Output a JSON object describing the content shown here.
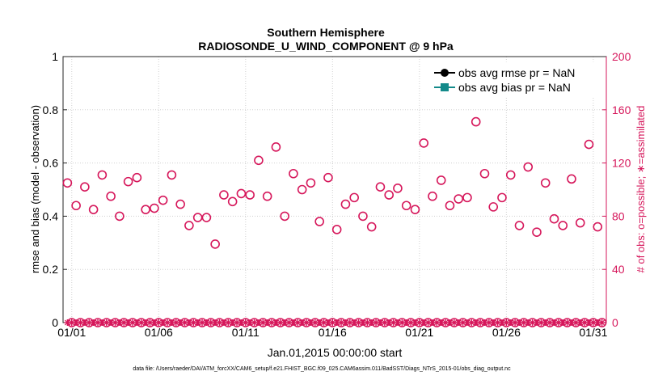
{
  "chart_data": {
    "type": "scatter",
    "title": "Southern Hemisphere",
    "subtitle": "RADIOSONDE_U_WIND_COMPONENT @ 9 hPa",
    "xlabel": "Jan.01,2015 00:00:00 start",
    "ylabel": "rmse and bias (model - observation)",
    "y2label": "# of obs: o=possible; ∗=assimilated",
    "footer": "data file: /Users/raeder/DAI/ATM_forcXX/CAM6_setup/f.e21.FHIST_BGC.f09_025.CAM6assim.011/BadSST/Diags_NTrS_2015-01/obs_diag_output.nc",
    "xlim": [
      0.5,
      31.75
    ],
    "ylim": [
      0,
      1
    ],
    "y2lim": [
      0,
      200
    ],
    "x_ticks": [
      1,
      6,
      11,
      16,
      21,
      26,
      31
    ],
    "x_tick_labels": [
      "01/01",
      "01/06",
      "01/11",
      "01/16",
      "01/21",
      "01/26",
      "01/31"
    ],
    "y_ticks": [
      0,
      0.2,
      0.4,
      0.6,
      0.8,
      1
    ],
    "y_tick_labels": [
      "0",
      "0.2",
      "0.4",
      "0.6",
      "0.8",
      "1"
    ],
    "y2_ticks": [
      0,
      40,
      80,
      120,
      160,
      200
    ],
    "y2_tick_labels": [
      "0",
      "40",
      "80",
      "120",
      "160",
      "200"
    ],
    "legend_position": "top-right",
    "series": [
      {
        "name": "obs avg rmse pr = NaN",
        "color": "#000000",
        "marker": "filled-circle",
        "values": []
      },
      {
        "name": "obs avg bias pr = NaN",
        "color": "#138a8a",
        "marker": "filled-square",
        "values": []
      }
    ],
    "possible_obs": {
      "axis": "right",
      "color": "#d6175b",
      "x": [
        0.75,
        1,
        1.25,
        1.5,
        1.75,
        2,
        2.25,
        2.5,
        2.75,
        3,
        3.25,
        3.5,
        3.75,
        4,
        4.25,
        4.5,
        4.75,
        5,
        5.25,
        5.5,
        5.75,
        6,
        6.25,
        6.5,
        6.75,
        7,
        7.25,
        7.5,
        7.75,
        8,
        8.25,
        8.5,
        8.75,
        9,
        9.25,
        9.5,
        9.75,
        10,
        10.25,
        10.5,
        10.75,
        11,
        11.25,
        11.5,
        11.75,
        12,
        12.25,
        12.5,
        12.75,
        13,
        13.25,
        13.5,
        13.75,
        14,
        14.25,
        14.5,
        14.75,
        15,
        15.25,
        15.5,
        15.75,
        16,
        16.25,
        16.5,
        16.75,
        17,
        17.25,
        17.5,
        17.75,
        18,
        18.25,
        18.5,
        18.75,
        19,
        19.25,
        19.5,
        19.75,
        20,
        20.25,
        20.5,
        20.75,
        21,
        21.25,
        21.5,
        21.75,
        22,
        22.25,
        22.5,
        22.75,
        23,
        23.25,
        23.5,
        23.75,
        24,
        24.25,
        24.5,
        24.75,
        25,
        25.25,
        25.5,
        25.75,
        26,
        26.25,
        26.5,
        26.75,
        27,
        27.25,
        27.5,
        27.75,
        28,
        28.25,
        28.5,
        28.75,
        29,
        29.25,
        29.5,
        29.75,
        30,
        30.25,
        30.5,
        30.75,
        31,
        31.25,
        31.5
      ],
      "values": [
        105,
        0,
        88,
        0,
        102,
        0,
        85,
        0,
        111,
        0,
        95,
        0,
        80,
        0,
        106,
        0,
        109,
        0,
        85,
        0,
        86,
        0,
        92,
        0,
        111,
        0,
        89,
        0,
        73,
        0,
        79,
        0,
        79,
        0,
        59,
        0,
        96,
        0,
        91,
        0,
        97,
        0,
        96,
        0,
        122,
        0,
        95,
        0,
        132,
        0,
        80,
        0,
        112,
        0,
        100,
        0,
        105,
        0,
        76,
        0,
        109,
        0,
        70,
        0,
        89,
        0,
        94,
        0,
        80,
        0,
        72,
        0,
        102,
        0,
        96,
        0,
        101,
        0,
        88,
        0,
        85,
        0,
        135,
        0,
        95,
        0,
        107,
        0,
        88,
        0,
        93,
        0,
        94,
        0,
        151,
        0,
        112,
        0,
        87,
        0,
        94,
        0,
        111,
        0,
        73,
        0,
        117,
        0,
        68,
        0,
        105,
        0,
        78,
        0,
        73,
        0,
        108,
        0,
        75,
        0,
        134,
        0,
        72,
        0
      ]
    },
    "assimilated_obs": {
      "axis": "right",
      "color": "#d6175b",
      "values": "all 0"
    }
  }
}
